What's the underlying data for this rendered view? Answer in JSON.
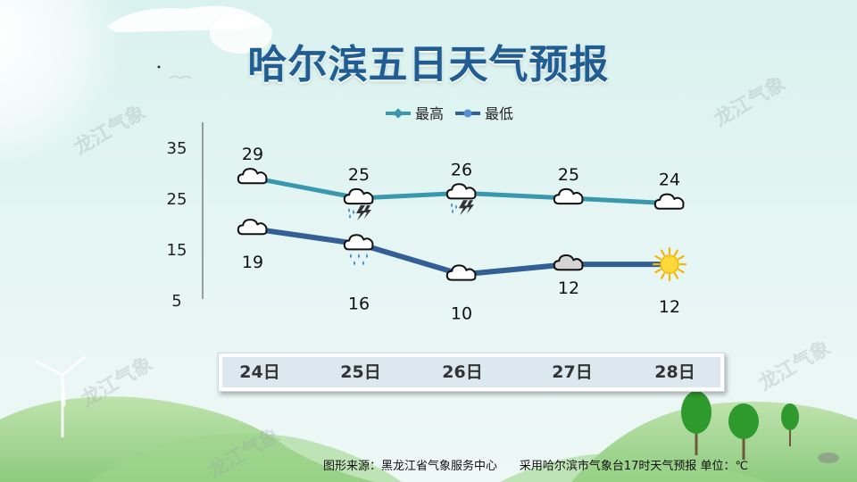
{
  "title": "哈尔滨五日天气预报",
  "watermark": "龙江气象",
  "footer": {
    "source": "图形来源：黑龙江省气象服务中心",
    "note": "采用哈尔滨市气象台17时天气预报 单位：℃"
  },
  "colors": {
    "high": "#3a98ae",
    "low": "#345f95",
    "title": "#1f5d93"
  },
  "chart_data": {
    "type": "line",
    "x": [
      "24日",
      "25日",
      "26日",
      "27日",
      "28日"
    ],
    "y_ticks": [
      35,
      25,
      15,
      5
    ],
    "ylim": [
      5,
      35
    ],
    "legend_position": "top",
    "series": [
      {
        "name": "最高",
        "values": [
          29,
          25,
          26,
          25,
          24
        ],
        "icons": [
          "cloudy-icon",
          "thunder-rain-icon",
          "thunder-rain-icon",
          "cloudy-icon",
          "cloudy-icon"
        ]
      },
      {
        "name": "最低",
        "values": [
          19,
          16,
          10,
          12,
          12
        ],
        "icons": [
          "cloudy-icon",
          "rain-icon",
          "cloudy-icon",
          "overcast-icon",
          "sunny-icon"
        ]
      }
    ]
  }
}
